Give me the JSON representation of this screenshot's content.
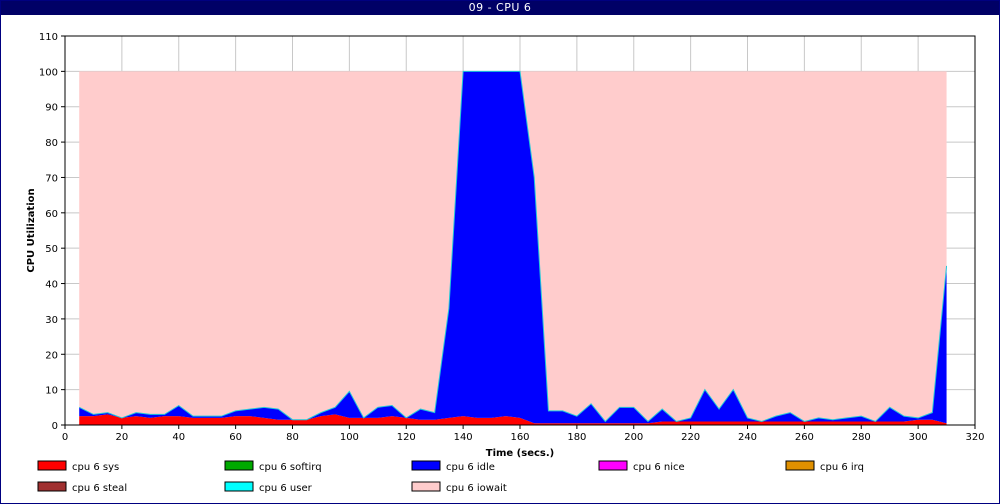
{
  "window": {
    "title": "09 - CPU 6"
  },
  "chart_data": {
    "type": "area",
    "title": "09 - CPU 6",
    "xlabel": "Time (secs.)",
    "ylabel": "CPU Utilization",
    "xlim": [
      0,
      320
    ],
    "ylim": [
      0,
      110
    ],
    "xticks": [
      0,
      20,
      40,
      60,
      80,
      100,
      120,
      140,
      160,
      180,
      200,
      220,
      240,
      260,
      280,
      300,
      320
    ],
    "yticks": [
      0,
      10,
      20,
      30,
      40,
      50,
      60,
      70,
      80,
      90,
      100,
      110
    ],
    "grid": true,
    "legend_position": "bottom",
    "x": [
      5,
      10,
      15,
      20,
      25,
      30,
      35,
      40,
      45,
      50,
      55,
      60,
      65,
      70,
      75,
      80,
      85,
      90,
      95,
      100,
      105,
      110,
      115,
      120,
      125,
      130,
      135,
      140,
      145,
      150,
      155,
      160,
      165,
      170,
      175,
      180,
      185,
      190,
      195,
      200,
      205,
      210,
      215,
      220,
      225,
      230,
      235,
      240,
      245,
      250,
      255,
      260,
      265,
      270,
      275,
      280,
      285,
      290,
      295,
      300,
      305,
      310
    ],
    "stacked": true,
    "series": [
      {
        "name": "cpu 6 sys",
        "color": "#ff0000",
        "values": [
          2.5,
          2.5,
          3,
          2,
          2.5,
          2,
          2.5,
          2.5,
          2,
          2,
          2,
          2.5,
          2.5,
          2,
          1.5,
          1.5,
          1.5,
          2.5,
          3,
          2,
          2,
          2,
          2.5,
          2,
          1.5,
          1.5,
          2,
          2.5,
          2,
          2,
          2.5,
          2,
          0.5,
          0.5,
          0.5,
          0.5,
          0.5,
          0.5,
          0.5,
          0.5,
          0.5,
          1,
          1,
          1,
          1,
          1,
          1,
          1,
          1,
          1,
          1,
          1,
          1,
          1,
          1,
          1,
          1,
          1,
          1,
          1.5,
          1.5,
          0.5
        ]
      },
      {
        "name": "cpu 6 softirq",
        "color": "#00aa00",
        "values": [
          0,
          0,
          0,
          0,
          0,
          0,
          0,
          0,
          0,
          0,
          0,
          0,
          0,
          0,
          0,
          0,
          0,
          0,
          0,
          0,
          0,
          0,
          0,
          0,
          0,
          0,
          0,
          0,
          0,
          0,
          0,
          0,
          0,
          0,
          0,
          0,
          0,
          0,
          0,
          0,
          0,
          0,
          0,
          0,
          0,
          0,
          0,
          0,
          0,
          0,
          0,
          0,
          0,
          0,
          0,
          0,
          0,
          0,
          0,
          0,
          0,
          0
        ]
      },
      {
        "name": "cpu 6 idle",
        "color": "#0000ff",
        "values": [
          2.5,
          0.5,
          0.5,
          0,
          1,
          1,
          0.5,
          3,
          0.5,
          0.5,
          0.5,
          1.5,
          2,
          3,
          3,
          0,
          0,
          1,
          2,
          7.5,
          0,
          3,
          3,
          0,
          3,
          2,
          31,
          97.5,
          98,
          98,
          97.5,
          98,
          69.5,
          3.5,
          3.5,
          2,
          5.5,
          0.5,
          4.5,
          4.5,
          0.5,
          3.5,
          0,
          1,
          9,
          3.5,
          9,
          1,
          0,
          1.5,
          2.5,
          0,
          1,
          0.5,
          1,
          1.5,
          0,
          4,
          1.5,
          0.5,
          2,
          44.5
        ]
      },
      {
        "name": "cpu 6 nice",
        "color": "#ff00ff",
        "values": [
          0,
          0,
          0,
          0,
          0,
          0,
          0,
          0,
          0,
          0,
          0,
          0,
          0,
          0,
          0,
          0,
          0,
          0,
          0,
          0,
          0,
          0,
          0,
          0,
          0,
          0,
          0,
          0,
          0,
          0,
          0,
          0,
          0,
          0,
          0,
          0,
          0,
          0,
          0,
          0,
          0,
          0,
          0,
          0,
          0,
          0,
          0,
          0,
          0,
          0,
          0,
          0,
          0,
          0,
          0,
          0,
          0,
          0,
          0,
          0,
          0,
          0
        ]
      },
      {
        "name": "cpu 6 irq",
        "color": "#e09000",
        "values": [
          0,
          0,
          0,
          0,
          0,
          0,
          0,
          0,
          0,
          0,
          0,
          0,
          0,
          0,
          0,
          0,
          0,
          0,
          0,
          0,
          0,
          0,
          0,
          0,
          0,
          0,
          0,
          0,
          0,
          0,
          0,
          0,
          0,
          0,
          0,
          0,
          0,
          0,
          0,
          0,
          0,
          0,
          0,
          0,
          0,
          0,
          0,
          0,
          0,
          0,
          0,
          0,
          0,
          0,
          0,
          0,
          0,
          0,
          0,
          0,
          0,
          0
        ]
      },
      {
        "name": "cpu 6 steal",
        "color": "#a03030",
        "values": [
          0,
          0,
          0,
          0,
          0,
          0,
          0,
          0,
          0,
          0,
          0,
          0,
          0,
          0,
          0,
          0,
          0,
          0,
          0,
          0,
          0,
          0,
          0,
          0,
          0,
          0,
          0,
          0,
          0,
          0,
          0,
          0,
          0,
          0,
          0,
          0,
          0,
          0,
          0,
          0,
          0,
          0,
          0,
          0,
          0,
          0,
          0,
          0,
          0,
          0,
          0,
          0,
          0,
          0,
          0,
          0,
          0,
          0,
          0,
          0,
          0,
          0
        ]
      },
      {
        "name": "cpu 6 user",
        "color": "#00ffff",
        "values": [
          0,
          0,
          0,
          0,
          0,
          0,
          0,
          0,
          0,
          0,
          0,
          0,
          0,
          0,
          0,
          0,
          0,
          0,
          0,
          0,
          0,
          0,
          0,
          0,
          0,
          0,
          0,
          0,
          0,
          0,
          0,
          0,
          0,
          0,
          0,
          0,
          0,
          0,
          0,
          0,
          0,
          0,
          0,
          0,
          0,
          0,
          0,
          0,
          0,
          0,
          0,
          0,
          0,
          0,
          0,
          0,
          0,
          0,
          0,
          0,
          0,
          0
        ]
      },
      {
        "name": "cpu 6 iowait",
        "color": "#ffcccc",
        "values": [
          95,
          97,
          96.5,
          98,
          96.5,
          97,
          97,
          94.5,
          97.5,
          97.5,
          97.5,
          96,
          95.5,
          95,
          95.5,
          98.5,
          98.5,
          96.5,
          95,
          90.5,
          98,
          95,
          94.5,
          98,
          95.5,
          96.5,
          67,
          0,
          0,
          0,
          0,
          0,
          30,
          96,
          96,
          97.5,
          94,
          99,
          95,
          95,
          99,
          95.5,
          99,
          98,
          90,
          95.5,
          90,
          98,
          99,
          97.5,
          96.5,
          99,
          98,
          98.5,
          98,
          97.5,
          99,
          95,
          97.5,
          98,
          96.5,
          55
        ]
      }
    ]
  }
}
